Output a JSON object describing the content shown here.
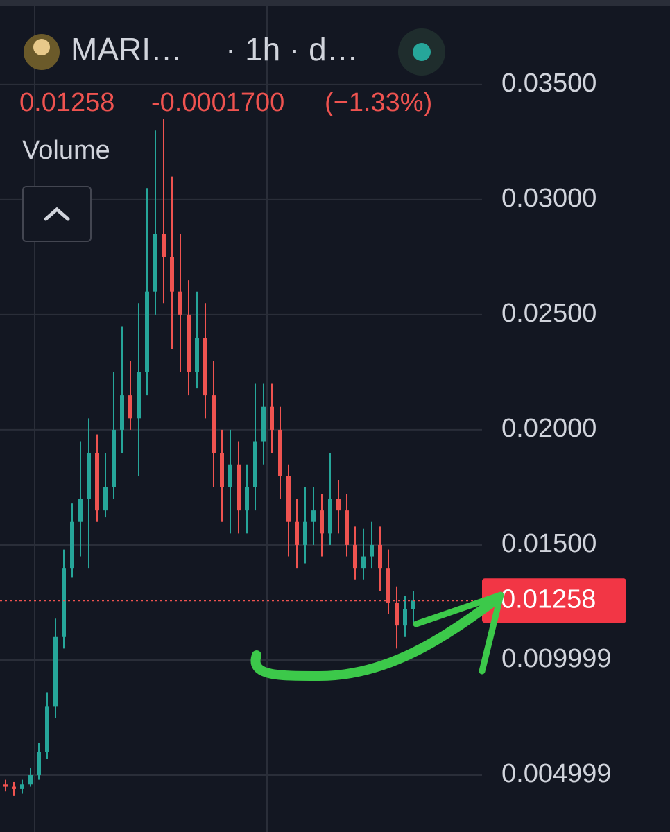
{
  "chart_data": {
    "type": "candlestick",
    "symbol": "MARI…",
    "interval": "· 1h · d…",
    "last_price": 0.01258,
    "change": "-0.0001700",
    "change_percent": "(−1.33%)",
    "indicator": "Volume",
    "up_color": "#26a69a",
    "down_color": "#ef5350",
    "open": [
      0.0046,
      0.0045,
      0.0044,
      0.0046,
      0.005,
      0.006,
      0.008,
      0.011,
      0.014,
      0.016,
      0.017,
      0.019,
      0.0165,
      0.0175,
      0.02,
      0.0215,
      0.0205,
      0.0225,
      0.026,
      0.0285,
      0.0275,
      0.026,
      0.025,
      0.0225,
      0.024,
      0.0215,
      0.019,
      0.0175,
      0.0185,
      0.0165,
      0.0175,
      0.0195,
      0.021,
      0.02,
      0.018,
      0.016,
      0.015,
      0.016,
      0.0165,
      0.0155,
      0.017,
      0.0165,
      0.015,
      0.014,
      0.0145,
      0.015,
      0.014,
      0.0125,
      0.0115,
      0.0122
    ],
    "high": [
      0.0048,
      0.0047,
      0.0048,
      0.0053,
      0.0064,
      0.0086,
      0.0118,
      0.0148,
      0.0168,
      0.0195,
      0.0205,
      0.0198,
      0.019,
      0.0225,
      0.0245,
      0.023,
      0.0255,
      0.0305,
      0.033,
      0.0335,
      0.031,
      0.0285,
      0.0265,
      0.026,
      0.0255,
      0.023,
      0.02,
      0.02,
      0.0195,
      0.0185,
      0.022,
      0.022,
      0.022,
      0.021,
      0.0185,
      0.017,
      0.0175,
      0.0175,
      0.0172,
      0.019,
      0.0178,
      0.0172,
      0.0158,
      0.0157,
      0.016,
      0.0158,
      0.0148,
      0.0132,
      0.0128,
      0.013
    ],
    "low": [
      0.0043,
      0.0041,
      0.0042,
      0.0045,
      0.0048,
      0.0057,
      0.0075,
      0.0105,
      0.0136,
      0.0145,
      0.014,
      0.016,
      0.0162,
      0.017,
      0.019,
      0.02,
      0.018,
      0.0215,
      0.025,
      0.0255,
      0.0235,
      0.0225,
      0.0215,
      0.0218,
      0.0205,
      0.0175,
      0.016,
      0.0155,
      0.0155,
      0.0155,
      0.0165,
      0.0185,
      0.019,
      0.017,
      0.0145,
      0.014,
      0.0142,
      0.015,
      0.0145,
      0.015,
      0.0155,
      0.0145,
      0.0135,
      0.0135,
      0.014,
      0.013,
      0.012,
      0.0105,
      0.011,
      0.0115
    ],
    "close": [
      0.0045,
      0.0044,
      0.0046,
      0.005,
      0.006,
      0.008,
      0.011,
      0.014,
      0.016,
      0.017,
      0.019,
      0.0165,
      0.0175,
      0.02,
      0.0215,
      0.0205,
      0.0225,
      0.026,
      0.0285,
      0.0275,
      0.026,
      0.025,
      0.0225,
      0.024,
      0.0215,
      0.019,
      0.0175,
      0.0185,
      0.0165,
      0.0175,
      0.0195,
      0.021,
      0.02,
      0.018,
      0.016,
      0.015,
      0.016,
      0.0165,
      0.0155,
      0.017,
      0.0165,
      0.015,
      0.014,
      0.0145,
      0.015,
      0.014,
      0.0125,
      0.0115,
      0.0122,
      0.01258
    ],
    "ylim": [
      0.00253,
      0.03867
    ],
    "yticks": [
      {
        "value": 0.035,
        "label": "0.03500"
      },
      {
        "value": 0.03,
        "label": "0.03000"
      },
      {
        "value": 0.025,
        "label": "0.02500"
      },
      {
        "value": 0.02,
        "label": "0.02000"
      },
      {
        "value": 0.015,
        "label": "0.01500"
      },
      0.009999,
      0.004999
    ],
    "grid": true
  }
}
